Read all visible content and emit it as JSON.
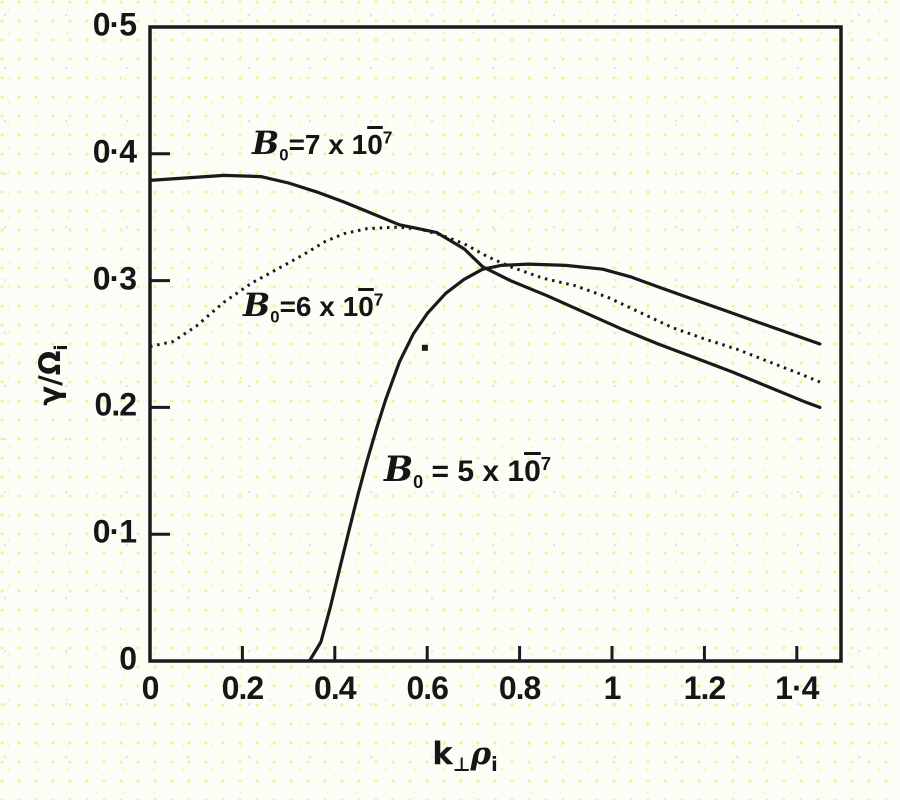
{
  "colors": {
    "ink": "#1a1a1a",
    "paper": "#fdfdf8",
    "speckle": "#e9e958"
  },
  "axes": {
    "y": {
      "title_main": "γ/Ω",
      "title_sub": "i",
      "ticks": [
        {
          "value": 0.5,
          "label": "0·5"
        },
        {
          "value": 0.4,
          "label": "0·4"
        },
        {
          "value": 0.3,
          "label": "0·3"
        },
        {
          "value": 0.2,
          "label": "0.2"
        },
        {
          "value": 0.1,
          "label": "0·1"
        },
        {
          "value": 0,
          "label": "0"
        }
      ]
    },
    "x": {
      "title_k": "k",
      "title_perp": "⊥",
      "title_rho": "ρ",
      "title_i": "i",
      "ticks": [
        {
          "value": 0,
          "label": "0"
        },
        {
          "value": 0.2,
          "label": "0.2"
        },
        {
          "value": 0.4,
          "label": "0.4"
        },
        {
          "value": 0.6,
          "label": "0.6"
        },
        {
          "value": 0.8,
          "label": "0.8"
        },
        {
          "value": 1,
          "label": "1"
        },
        {
          "value": 1.2,
          "label": "1.2"
        },
        {
          "value": 1.4,
          "label": "1·4"
        }
      ]
    }
  },
  "curve_labels": {
    "b7": {
      "symbol": "B",
      "sub": "0",
      "mid": "=7 x 1",
      "zero": "0",
      "exp": "7"
    },
    "b6": {
      "symbol": "B",
      "sub": "0",
      "mid": "=6 x 1",
      "zero": "0",
      "exp": "7"
    },
    "b5": {
      "symbol": "B",
      "sub": "0",
      "mid": " = 5 x 1",
      "zero": "0",
      "exp": "7"
    }
  },
  "chart_data": {
    "type": "line",
    "title": "",
    "xlabel": "k⊥ρi",
    "ylabel": "γ/Ωi",
    "xlim": [
      0,
      1.49
    ],
    "ylim": [
      0,
      0.5
    ],
    "x_ticks": [
      0,
      0.2,
      0.4,
      0.6,
      0.8,
      1.0,
      1.2,
      1.4
    ],
    "y_ticks": [
      0,
      0.1,
      0.2,
      0.3,
      0.4,
      0.5
    ],
    "grid": false,
    "legend": "inline-labels",
    "series": [
      {
        "id": "b0-7e-7",
        "name": "B0 = 7×10⁻⁷",
        "line_style": "solid",
        "points": [
          [
            0,
            0.379
          ],
          [
            0.08,
            0.381
          ],
          [
            0.16,
            0.383
          ],
          [
            0.24,
            0.382
          ],
          [
            0.3,
            0.377
          ],
          [
            0.36,
            0.37
          ],
          [
            0.42,
            0.362
          ],
          [
            0.48,
            0.353
          ],
          [
            0.54,
            0.344
          ],
          [
            0.58,
            0.341
          ],
          [
            0.62,
            0.338
          ],
          [
            0.68,
            0.325
          ],
          [
            0.72,
            0.311
          ],
          [
            0.78,
            0.3
          ],
          [
            0.86,
            0.288
          ],
          [
            0.94,
            0.275
          ],
          [
            1.02,
            0.262
          ],
          [
            1.1,
            0.25
          ],
          [
            1.18,
            0.239
          ],
          [
            1.26,
            0.228
          ],
          [
            1.34,
            0.216
          ],
          [
            1.42,
            0.204
          ],
          [
            1.45,
            0.2
          ]
        ]
      },
      {
        "id": "b0-6e-7",
        "name": "B0 = 6×10⁻⁷",
        "line_style": "dotted",
        "points": [
          [
            0,
            0.248
          ],
          [
            0.05,
            0.252
          ],
          [
            0.1,
            0.264
          ],
          [
            0.16,
            0.283
          ],
          [
            0.22,
            0.298
          ],
          [
            0.28,
            0.31
          ],
          [
            0.33,
            0.32
          ],
          [
            0.38,
            0.331
          ],
          [
            0.42,
            0.337
          ],
          [
            0.47,
            0.341
          ],
          [
            0.53,
            0.342
          ],
          [
            0.58,
            0.341
          ],
          [
            0.63,
            0.336
          ],
          [
            0.68,
            0.329
          ],
          [
            0.73,
            0.319
          ],
          [
            0.78,
            0.311
          ],
          [
            0.85,
            0.302
          ],
          [
            0.92,
            0.296
          ],
          [
            0.99,
            0.287
          ],
          [
            1.06,
            0.275
          ],
          [
            1.13,
            0.263
          ],
          [
            1.2,
            0.254
          ],
          [
            1.27,
            0.246
          ],
          [
            1.34,
            0.236
          ],
          [
            1.41,
            0.226
          ],
          [
            1.45,
            0.22
          ]
        ]
      },
      {
        "id": "b0-5e-7",
        "name": "B0 = 5×10⁻⁷",
        "line_style": "solid",
        "points": [
          [
            0.345,
            0
          ],
          [
            0.37,
            0.015
          ],
          [
            0.39,
            0.042
          ],
          [
            0.41,
            0.072
          ],
          [
            0.43,
            0.102
          ],
          [
            0.45,
            0.131
          ],
          [
            0.47,
            0.158
          ],
          [
            0.49,
            0.183
          ],
          [
            0.51,
            0.206
          ],
          [
            0.54,
            0.236
          ],
          [
            0.57,
            0.258
          ],
          [
            0.6,
            0.274
          ],
          [
            0.64,
            0.29
          ],
          [
            0.68,
            0.301
          ],
          [
            0.72,
            0.309
          ],
          [
            0.76,
            0.312
          ],
          [
            0.82,
            0.313
          ],
          [
            0.9,
            0.312
          ],
          [
            0.98,
            0.309
          ],
          [
            1.04,
            0.303
          ],
          [
            1.1,
            0.295
          ],
          [
            1.17,
            0.286
          ],
          [
            1.24,
            0.277
          ],
          [
            1.31,
            0.268
          ],
          [
            1.38,
            0.259
          ],
          [
            1.45,
            0.25
          ]
        ]
      }
    ],
    "stray_mark": {
      "x": 0.595,
      "y": 0.247
    }
  }
}
